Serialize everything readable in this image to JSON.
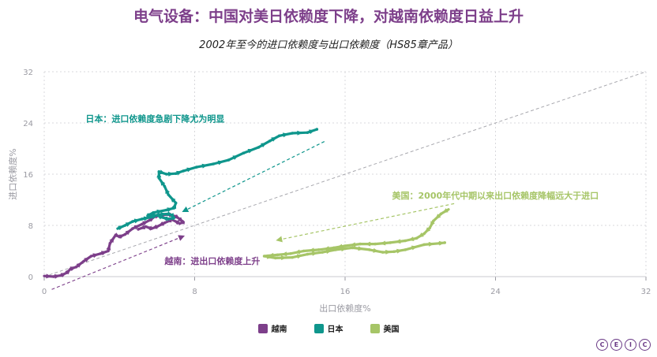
{
  "colors": {
    "vietnam": "#7d3f8a",
    "japan": "#0f968c",
    "usa": "#a6c567",
    "title": "#7d3f8a",
    "axis_text": "#9a9aa2",
    "grid": "#d8d8dc"
  },
  "chart_data": {
    "type": "scatter",
    "title": "电气设备：中国对美日依赖度下降，对越南依赖度日益上升",
    "subtitle": "2002年至今的进口依赖度与出口依赖度（HS85章产品）",
    "xlabel": "出口依赖度%",
    "ylabel": "进口依赖度%",
    "xlim": [
      0,
      32
    ],
    "ylim": [
      0,
      32
    ],
    "x_ticks": [
      "0",
      "8",
      "16",
      "24",
      "32"
    ],
    "y_ticks": [
      "0",
      "8",
      "16",
      "24",
      "32"
    ],
    "grid": true,
    "legend_position": "bottom",
    "series": [
      {
        "name": "越南",
        "color": "#7d3f8a",
        "x": [
          0.0,
          0.5,
          0.9,
          1.2,
          1.4,
          1.7,
          2.1,
          2.5,
          3.0,
          3.4,
          3.5,
          3.8,
          4.0,
          4.3,
          4.7,
          5.2,
          5.6,
          5.9,
          6.2,
          6.6,
          7.0,
          7.2,
          7.4,
          7.2,
          6.8,
          6.4,
          6.0,
          5.7,
          5.4,
          5.0
        ],
        "y": [
          0.1,
          0.0,
          0.2,
          0.6,
          1.2,
          1.5,
          2.4,
          3.2,
          3.6,
          4.0,
          5.2,
          6.5,
          6.2,
          6.6,
          7.5,
          8.2,
          8.8,
          9.4,
          9.6,
          9.7,
          9.4,
          9.0,
          8.5,
          8.3,
          8.9,
          8.4,
          7.8,
          7.5,
          7.8,
          7.4
        ]
      },
      {
        "name": "日本",
        "color": "#0f968c",
        "x": [
          3.9,
          4.3,
          4.7,
          5.2,
          5.7,
          6.1,
          6.6,
          6.8,
          6.9,
          6.6,
          6.2,
          6.0,
          5.5,
          5.8,
          6.5,
          6.9,
          7.0,
          6.6,
          6.4,
          6.1,
          6.1,
          6.5,
          7.0,
          7.4,
          8.1,
          9.0,
          9.8,
          10.6,
          11.4,
          12.0,
          12.5,
          13.2,
          14.0,
          14.5
        ],
        "y": [
          7.5,
          8.0,
          8.6,
          9.0,
          9.3,
          9.7,
          9.8,
          9.6,
          9.2,
          9.0,
          9.3,
          9.6,
          9.5,
          10.0,
          10.4,
          10.7,
          11.5,
          12.8,
          14.1,
          15.4,
          16.4,
          16.0,
          16.1,
          16.5,
          17.1,
          17.6,
          18.2,
          19.3,
          20.2,
          21.2,
          22.0,
          22.4,
          22.5,
          23.0
        ]
      },
      {
        "name": "美国",
        "color": "#a6c567",
        "x": [
          21.5,
          21.1,
          20.7,
          20.5,
          20.2,
          19.8,
          19.2,
          18.4,
          17.6,
          16.8,
          16.0,
          15.4,
          14.6,
          13.8,
          13.1,
          12.4,
          11.7,
          12.3,
          13.2,
          14.0,
          14.8,
          15.5,
          16.4,
          17.3,
          18.0,
          18.6,
          19.2,
          20.2,
          21.0,
          21.3
        ],
        "y": [
          10.5,
          9.8,
          8.7,
          7.6,
          6.7,
          6.0,
          5.6,
          5.3,
          5.1,
          5.1,
          4.8,
          4.5,
          4.2,
          4.0,
          3.6,
          3.4,
          3.2,
          2.9,
          3.0,
          3.5,
          3.8,
          4.2,
          4.5,
          4.2,
          3.8,
          3.9,
          4.2,
          5.0,
          5.2,
          5.3
        ]
      }
    ],
    "annotations": [
      {
        "id": "japan",
        "text": "日本：进口依赖度急剧下降尤为明显",
        "color": "#0f968c",
        "at": [
          2.2,
          24.2
        ],
        "arrow_from": [
          14.9,
          21.1
        ],
        "arrow_to": [
          7.4,
          10.2
        ]
      },
      {
        "id": "usa",
        "text": "美国：2000年代中期以来出口依赖度降幅远大于进口",
        "color": "#a6c567",
        "at": [
          18.5,
          12.2
        ],
        "arrow_from": [
          21.8,
          11.4
        ],
        "arrow_to": [
          12.4,
          5.7
        ]
      },
      {
        "id": "vietnam",
        "text": "越南：进出口依赖度上升",
        "color": "#7d3f8a",
        "at": [
          6.4,
          2.0
        ],
        "arrow_from": [
          0.4,
          -2.0
        ],
        "arrow_to": [
          7.4,
          6.3
        ]
      }
    ],
    "reference_line": {
      "from": [
        0,
        0
      ],
      "to": [
        32,
        32
      ]
    }
  },
  "logo": {
    "letters": [
      "C",
      "E",
      "I",
      "C"
    ]
  }
}
